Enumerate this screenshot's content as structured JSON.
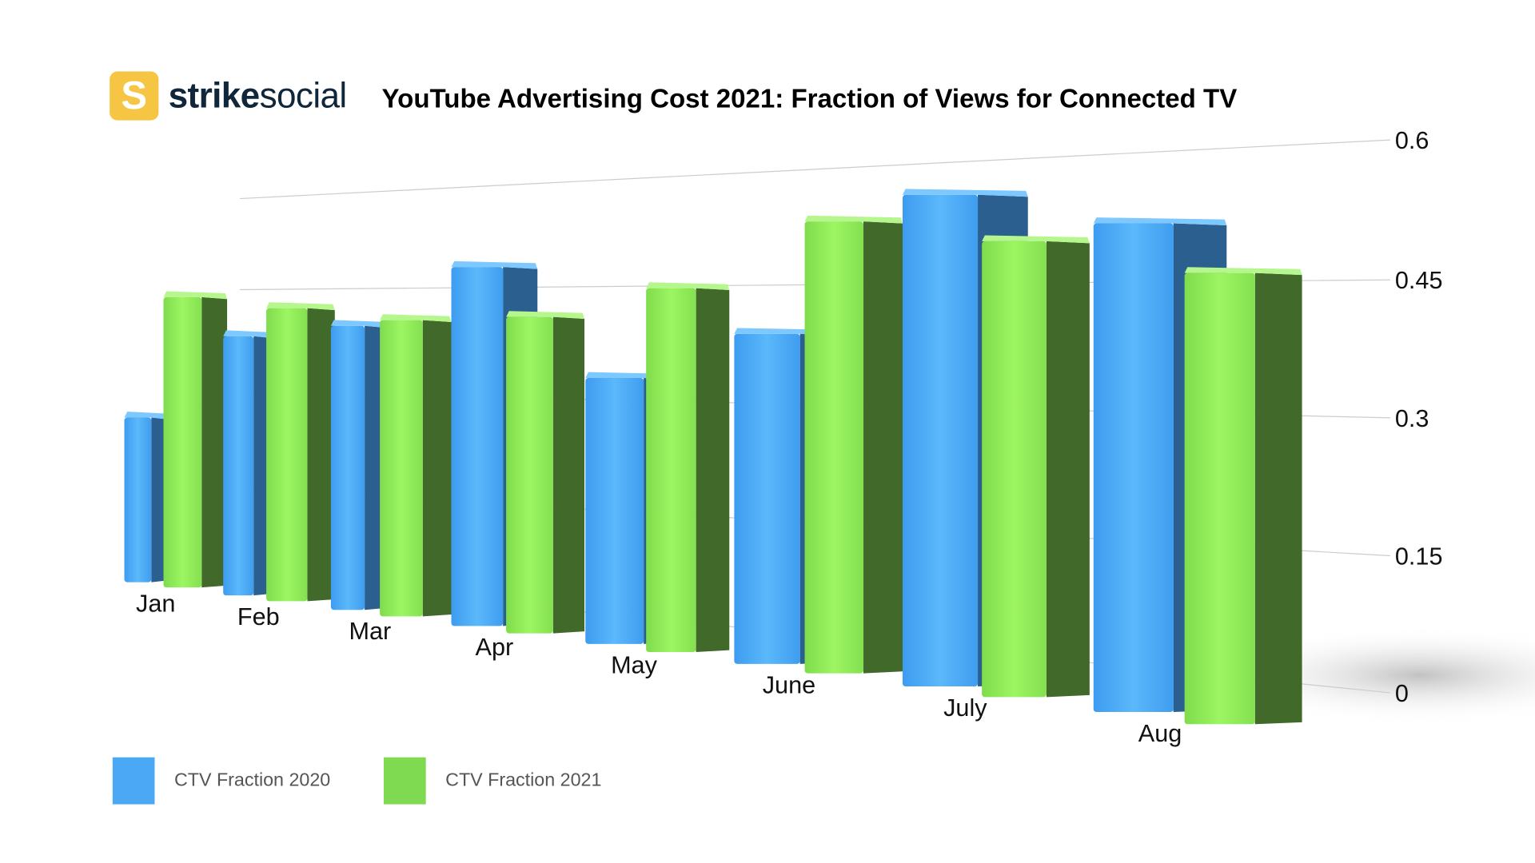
{
  "brand": {
    "name_bold": "strike",
    "name_light": "social",
    "mark": "S"
  },
  "chart_data": {
    "type": "bar",
    "title": "YouTube Advertising Cost 2021: Fraction of Views for Connected TV",
    "categories": [
      "Jan",
      "Feb",
      "Mar",
      "Apr",
      "May",
      "June",
      "July",
      "Aug"
    ],
    "series": [
      {
        "name": "CTV Fraction 2020",
        "color": "#4AA8F5",
        "values": [
          0.23,
          0.35,
          0.37,
          0.45,
          0.32,
          0.38,
          0.54,
          0.51
        ]
      },
      {
        "name": "CTV Fraction 2021",
        "color": "#8EEB5A",
        "values": [
          0.4,
          0.39,
          0.38,
          0.39,
          0.43,
          0.51,
          0.49,
          0.46
        ]
      }
    ],
    "yticks": [
      "0",
      "0.15",
      "0.3",
      "0.45",
      "0.6"
    ],
    "ylim": [
      0,
      0.6
    ],
    "grid": true,
    "legend": "bottom-left",
    "style": "3d-perspective"
  }
}
